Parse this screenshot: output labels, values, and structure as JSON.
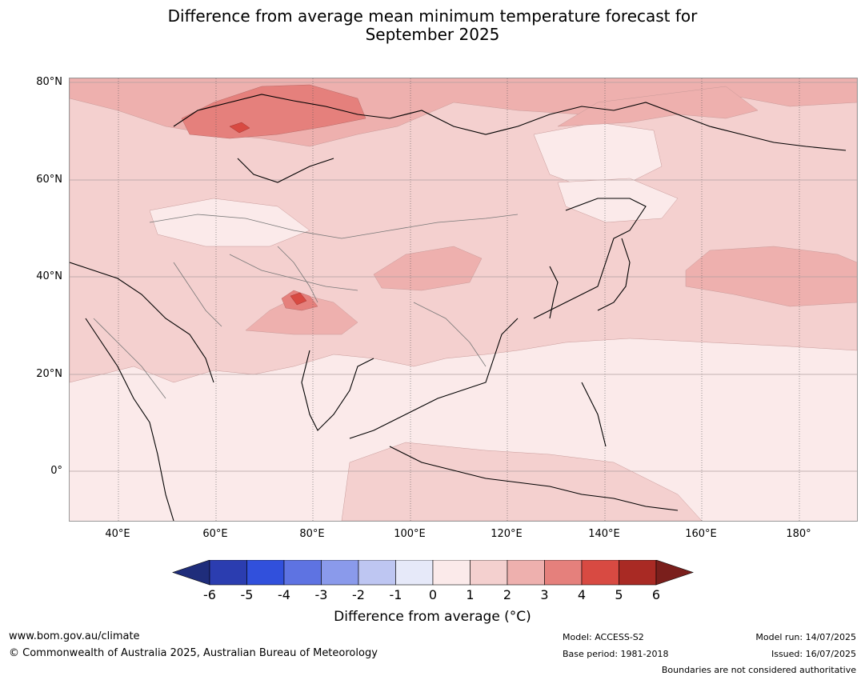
{
  "title": "Difference from average mean minimum temperature forecast for\nSeptember 2025",
  "map": {
    "lat_labels": [
      "80°N",
      "60°N",
      "40°N",
      "20°N",
      "0°"
    ],
    "lon_labels": [
      "40°E",
      "60°E",
      "80°E",
      "100°E",
      "120°E",
      "140°E",
      "160°E",
      "180°"
    ]
  },
  "colorbar": {
    "ticks": [
      "-6",
      "-5",
      "-4",
      "-3",
      "-2",
      "-1",
      "0",
      "1",
      "2",
      "3",
      "4",
      "5",
      "6"
    ],
    "colors": [
      "#1f2d7b",
      "#2b3db0",
      "#3150dc",
      "#5e73e2",
      "#8a9aeb",
      "#bec6f2",
      "#e6e9f9",
      "#fbeaea",
      "#f4d0cf",
      "#eeb0ae",
      "#e5807c",
      "#d84a42",
      "#a92a24",
      "#7a1f1c"
    ],
    "label": "Difference from average (°C)"
  },
  "footer": {
    "website": "www.bom.gov.au/climate",
    "copyright": "© Commonwealth of Australia 2025, Australian Bureau of Meteorology",
    "model": "Model: ACCESS-S2",
    "base_period": "Base period: 1981-2018",
    "model_run": "Model run: 14/07/2025",
    "issued": "Issued: 16/07/2025",
    "disclaimer": "Boundaries are not considered authoritative"
  }
}
